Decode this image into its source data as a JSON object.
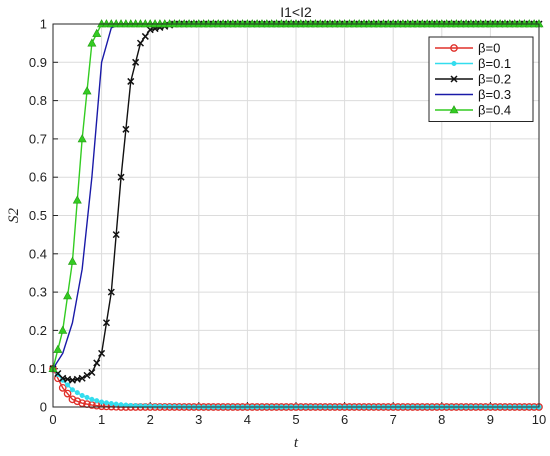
{
  "chart_data": {
    "type": "line",
    "title": "I1<I2",
    "xlabel": "t",
    "ylabel": "S2",
    "xlim": [
      0,
      10
    ],
    "ylim": [
      0,
      1
    ],
    "x_ticks": [
      "0",
      "1",
      "2",
      "3",
      "4",
      "5",
      "6",
      "7",
      "8",
      "9",
      "10"
    ],
    "y_ticks": [
      "0",
      "0.1",
      "0.2",
      "0.3",
      "0.4",
      "0.5",
      "0.6",
      "0.7",
      "0.8",
      "0.9",
      "1"
    ],
    "grid": true,
    "legend_position": "top-right",
    "x": [
      0,
      0.2,
      0.4,
      0.6,
      0.8,
      1.0,
      1.2,
      1.4,
      1.6,
      1.8,
      2.0,
      2.5,
      3,
      4,
      5,
      6,
      7,
      8,
      9,
      10
    ],
    "series": [
      {
        "name": "β=0",
        "color": "#e0302a",
        "marker": "circle",
        "values": [
          0.1,
          0.05,
          0.02,
          0.01,
          0.005,
          0.002,
          0.001,
          0,
          0,
          0,
          0,
          0,
          0,
          0,
          0,
          0,
          0,
          0,
          0,
          0
        ]
      },
      {
        "name": "β=0.1",
        "color": "#33ddee",
        "marker": "dot",
        "values": [
          0.1,
          0.07,
          0.045,
          0.03,
          0.02,
          0.013,
          0.009,
          0.006,
          0.004,
          0.003,
          0.002,
          0.001,
          0,
          0,
          0,
          0,
          0,
          0,
          0,
          0
        ]
      },
      {
        "name": "β=0.2",
        "color": "#111111",
        "marker": "x",
        "values": [
          0.1,
          0.075,
          0.07,
          0.075,
          0.09,
          0.14,
          0.3,
          0.6,
          0.85,
          0.95,
          0.985,
          1,
          1,
          1,
          1,
          1,
          1,
          1,
          1,
          1
        ]
      },
      {
        "name": "β=0.3",
        "color": "#1a1aa8",
        "marker": "none",
        "values": [
          0.1,
          0.14,
          0.22,
          0.36,
          0.6,
          0.9,
          0.99,
          1,
          1,
          1,
          1,
          1,
          1,
          1,
          1,
          1,
          1,
          1,
          1,
          1
        ]
      },
      {
        "name": "β=0.4",
        "color": "#33cc22",
        "marker": "triangle",
        "values": [
          0.1,
          0.2,
          0.38,
          0.7,
          0.95,
          1,
          1,
          1,
          1,
          1,
          1,
          1,
          1,
          1,
          1,
          1,
          1,
          1,
          1,
          1
        ]
      }
    ]
  }
}
